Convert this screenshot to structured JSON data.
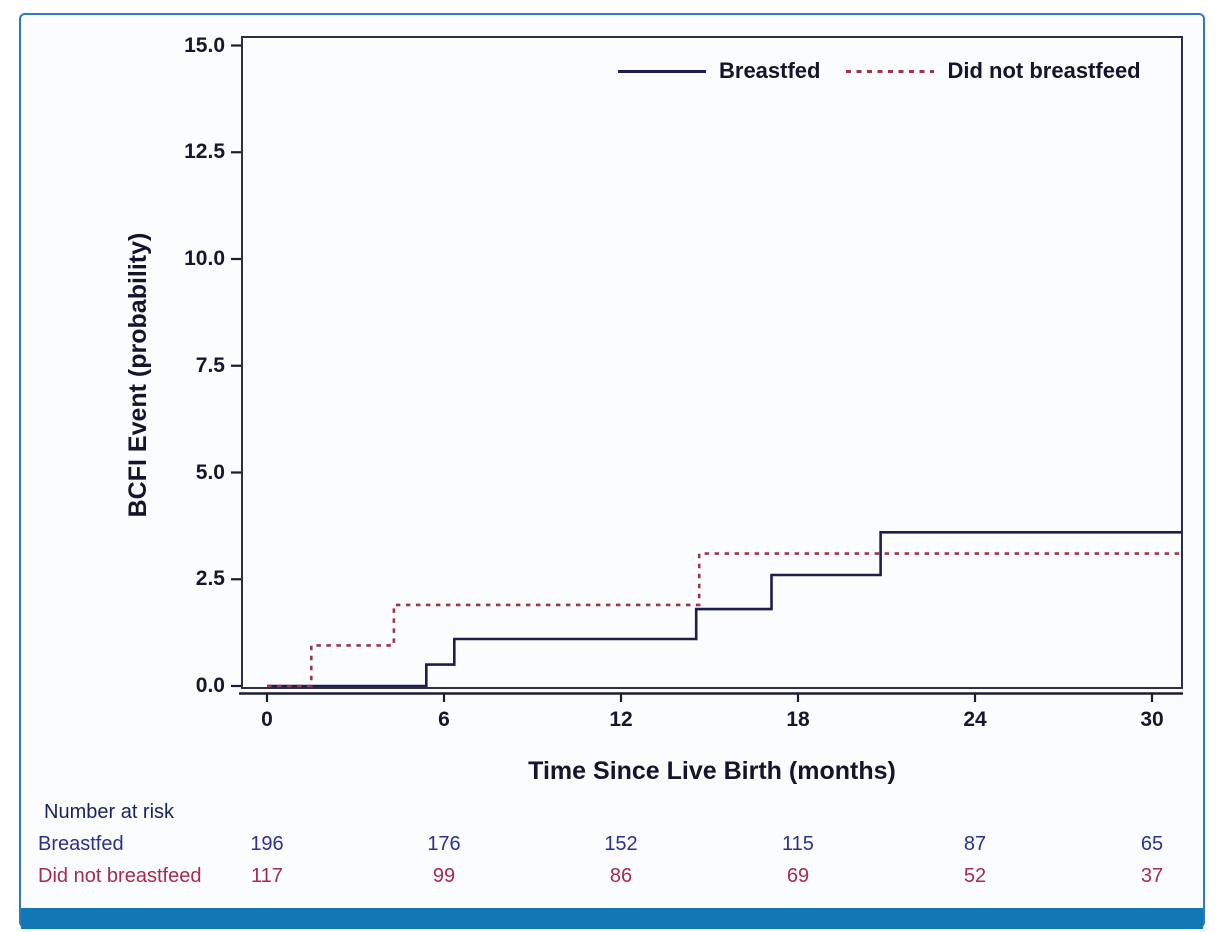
{
  "figure": {
    "border_color": "#2f78c4",
    "bottom_bar_color": "#1277b5",
    "background": "#fbfcfe",
    "axis_color": "#1c1c30",
    "frame_color": "#2e2e44"
  },
  "chart_data": {
    "type": "line",
    "subtype": "cumulative-incidence-step",
    "title": "",
    "xlabel": "Time Since Live Birth (months)",
    "ylabel": "BCFI Event (probability)",
    "xlim": [
      -0.9,
      31
    ],
    "ylim": [
      0,
      15.2
    ],
    "xticks": [
      "0",
      "6",
      "12",
      "18",
      "24",
      "30"
    ],
    "yticks": [
      "0.0",
      "2.5",
      "5.0",
      "7.5",
      "10.0",
      "12.5",
      "15.0"
    ],
    "grid": false,
    "legend_position": "top-right-inside",
    "series": [
      {
        "name": "Breastfed",
        "color": "#1d1d4f",
        "line_style": "solid",
        "step_points": [
          [
            0,
            0
          ],
          [
            5.4,
            0
          ],
          [
            5.4,
            0.5
          ],
          [
            6.35,
            0.5
          ],
          [
            6.35,
            1.1
          ],
          [
            14.55,
            1.1
          ],
          [
            14.55,
            1.8
          ],
          [
            17.1,
            1.8
          ],
          [
            17.1,
            2.6
          ],
          [
            20.8,
            2.6
          ],
          [
            20.8,
            3.6
          ],
          [
            31,
            3.6
          ]
        ]
      },
      {
        "name": "Did not breastfeed",
        "color": "#9c3548",
        "line_style": "dotted",
        "step_points": [
          [
            0,
            0
          ],
          [
            1.5,
            0
          ],
          [
            1.5,
            0.95
          ],
          [
            4.3,
            0.95
          ],
          [
            4.3,
            1.9
          ],
          [
            14.65,
            1.9
          ],
          [
            14.65,
            3.1
          ],
          [
            31,
            3.1
          ]
        ]
      }
    ],
    "number_at_risk": {
      "label": "Number at risk",
      "times": [
        0,
        6,
        12,
        18,
        24,
        30
      ],
      "rows": [
        {
          "name": "Breastfed",
          "color": "#2b2f8f",
          "values": [
            196,
            176,
            152,
            115,
            87,
            65
          ]
        },
        {
          "name": "Did not breastfeed",
          "color": "#a82b4a",
          "values": [
            117,
            99,
            86,
            69,
            52,
            37
          ]
        }
      ]
    }
  }
}
